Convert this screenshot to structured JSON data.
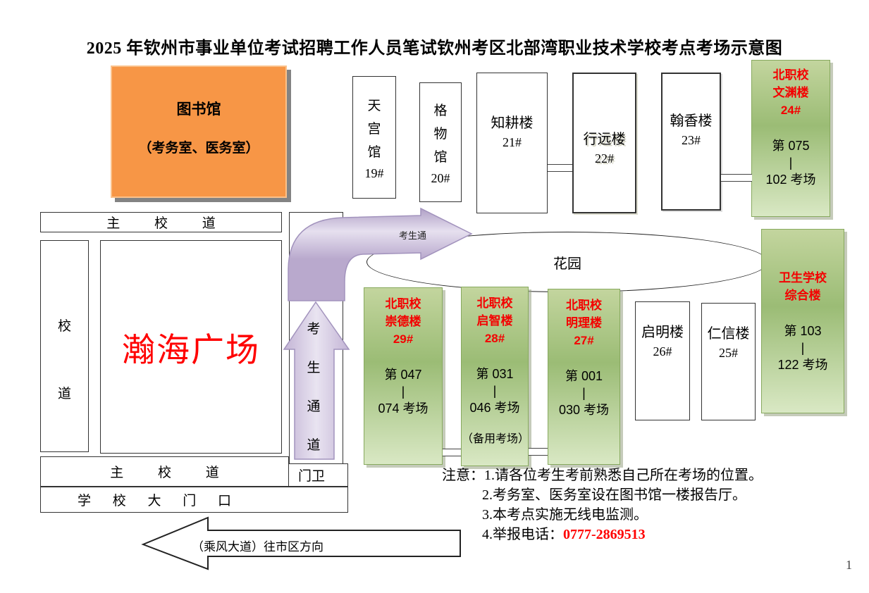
{
  "title": "2025 年钦州市事业单位考试招聘工作人员笔试钦州考区北部湾职业技术学校考点考场示意图",
  "library": {
    "name": "图书馆",
    "note": "（考务室、医务室）"
  },
  "white_buildings": {
    "tiangong": {
      "name": "天\n宫\n馆",
      "num": "19#"
    },
    "gewu": {
      "name": "格\n物\n馆",
      "num": "20#"
    },
    "zhigeng": {
      "name": "知耕楼",
      "num": "21#"
    },
    "xingyuan": {
      "name": "行远楼",
      "num": "22#"
    },
    "hanxiang": {
      "name": "翰香楼",
      "num": "23#"
    },
    "qiming": {
      "name": "启明楼",
      "num": "26#"
    },
    "renxin": {
      "name": "仁信楼",
      "num": "25#"
    }
  },
  "green_buildings": {
    "wenyuan": {
      "campus": "北职校",
      "name": "文渊楼",
      "num": "24#",
      "room_first": "第 075",
      "sep": "|",
      "room_last": "102 考场"
    },
    "chongde": {
      "campus": "北职校",
      "name": "崇德楼",
      "num": "29#",
      "room_first": "第 047",
      "sep": "|",
      "room_last": "074 考场"
    },
    "qizhi": {
      "campus": "北职校",
      "name": "启智楼",
      "num": "28#",
      "room_first": "第 031",
      "sep": "|",
      "room_last": "046 考场",
      "note": "（备用考场）"
    },
    "mingli": {
      "campus": "北职校",
      "name": "明理楼",
      "num": "27#",
      "room_first": "第 001",
      "sep": "|",
      "room_last": "030 考场"
    },
    "weisheng": {
      "campus": "卫生学校",
      "name": "综合楼",
      "room_first": "第 103",
      "sep": "|",
      "room_last": "122 考场"
    }
  },
  "roads": {
    "main_top": "主 校 道",
    "main_bottom": "主 校 道",
    "side_vertical": "校\n道",
    "gate": "学 校 大 门 口",
    "guard": "门卫"
  },
  "plaza": "瀚海广场",
  "garden": "花园",
  "walkway": {
    "vertical_chars": "考\n生\n通\n道",
    "curved_label": "考生通"
  },
  "notes": {
    "label": "注意：",
    "items": [
      "1.请各位考生考前熟悉自己所在考场的位置。",
      "2.考务室、医务室设在图书馆一楼报告厅。",
      "3.本考点实施无线电监测。",
      "4.举报电话："
    ],
    "phone": "0777-2869513"
  },
  "street_arrow_label": "（乘风大道）往市区方向",
  "page_number": "1",
  "colors": {
    "accent_red": "#FF0000",
    "library_orange": "#F79646",
    "green_top": "#C3D59E",
    "green_mid": "#9BBC75",
    "green_bottom": "#D9E8C4",
    "walkway_purple": "#D5CBE2"
  }
}
